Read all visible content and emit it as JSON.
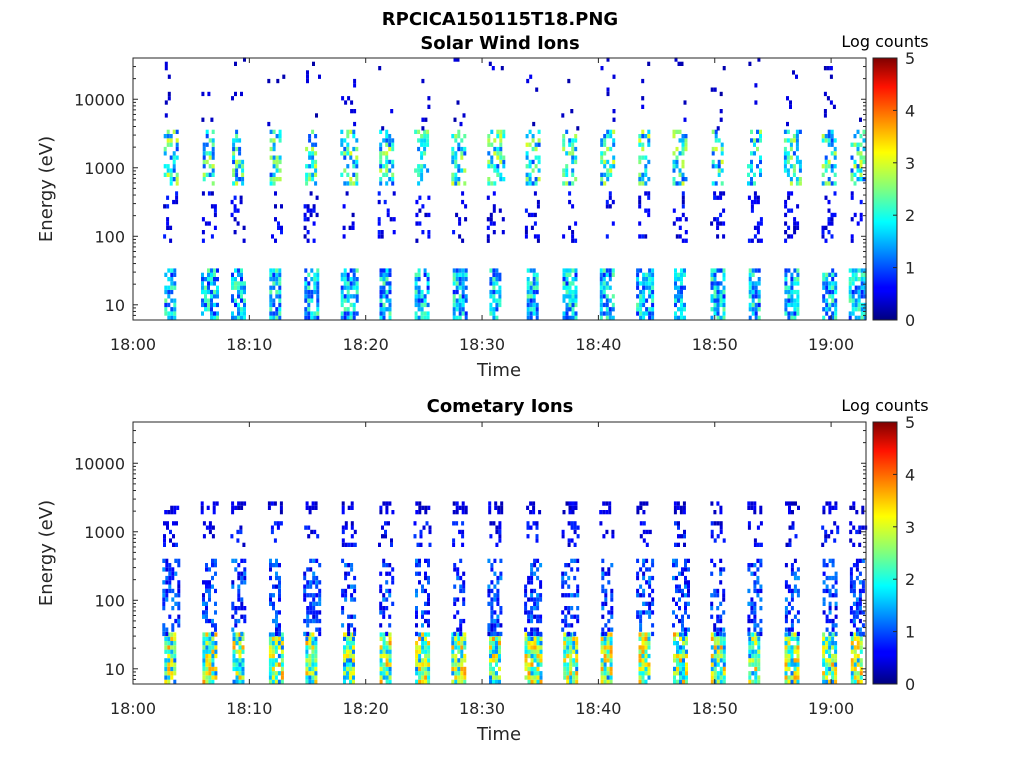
{
  "figure": {
    "title": "RPCICA150115T18.PNG"
  },
  "chart_data": [
    {
      "type": "heatmap",
      "title": "Solar Wind Ions",
      "xlabel": "Time",
      "ylabel": "Energy (eV)",
      "x_ticks": [
        "18:00",
        "18:10",
        "18:20",
        "18:30",
        "18:40",
        "18:50",
        "19:00"
      ],
      "x_range_minutes": [
        0,
        63
      ],
      "y_scale": "log",
      "y_range": [
        6,
        40000
      ],
      "y_ticks": [
        {
          "value": 10,
          "label": "10"
        },
        {
          "value": 100,
          "label": "100"
        },
        {
          "value": 1000,
          "label": "1000"
        },
        {
          "value": 10000,
          "label": "10000"
        }
      ],
      "colorbar": {
        "label": "Log counts",
        "range": [
          0,
          5
        ],
        "ticks": [
          "0",
          "1",
          "2",
          "3",
          "4",
          "5"
        ],
        "colormap": "jet"
      },
      "seed": 7,
      "bands": [
        {
          "e_min": 6,
          "e_max": 30,
          "peak": 2.1,
          "density": 0.75
        },
        {
          "e_min": 550,
          "e_max": 3200,
          "peak": 2.6,
          "density": 0.55
        },
        {
          "e_min": 80,
          "e_max": 400,
          "peak": 0.7,
          "density": 0.25
        },
        {
          "e_min": 3500,
          "e_max": 40000,
          "peak": 0.5,
          "density": 0.06
        }
      ]
    },
    {
      "type": "heatmap",
      "title": "Cometary Ions",
      "xlabel": "Time",
      "ylabel": "Energy (eV)",
      "x_ticks": [
        "18:00",
        "18:10",
        "18:20",
        "18:30",
        "18:40",
        "18:50",
        "19:00"
      ],
      "x_range_minutes": [
        0,
        63
      ],
      "y_scale": "log",
      "y_range": [
        6,
        40000
      ],
      "y_ticks": [
        {
          "value": 10,
          "label": "10"
        },
        {
          "value": 100,
          "label": "100"
        },
        {
          "value": 1000,
          "label": "1000"
        },
        {
          "value": 10000,
          "label": "10000"
        }
      ],
      "colorbar": {
        "label": "Log counts",
        "range": [
          0,
          5
        ],
        "ticks": [
          "0",
          "1",
          "2",
          "3",
          "4",
          "5"
        ],
        "colormap": "jet"
      },
      "seed": 19,
      "bands": [
        {
          "e_min": 6,
          "e_max": 30,
          "peak": 3.2,
          "density": 0.9
        },
        {
          "e_min": 30,
          "e_max": 400,
          "peak": 1.2,
          "density": 0.45
        },
        {
          "e_min": 1800,
          "e_max": 2600,
          "peak": 0.6,
          "density": 0.5
        },
        {
          "e_min": 600,
          "e_max": 1300,
          "peak": 0.8,
          "density": 0.3
        }
      ]
    }
  ],
  "bursts_minutes": [
    3.2,
    6.5,
    9.0,
    12.2,
    15.3,
    18.5,
    21.7,
    24.8,
    28.0,
    31.1,
    34.3,
    37.5,
    40.7,
    43.9,
    47.0,
    50.2,
    53.4,
    56.6,
    59.8,
    62.2
  ]
}
